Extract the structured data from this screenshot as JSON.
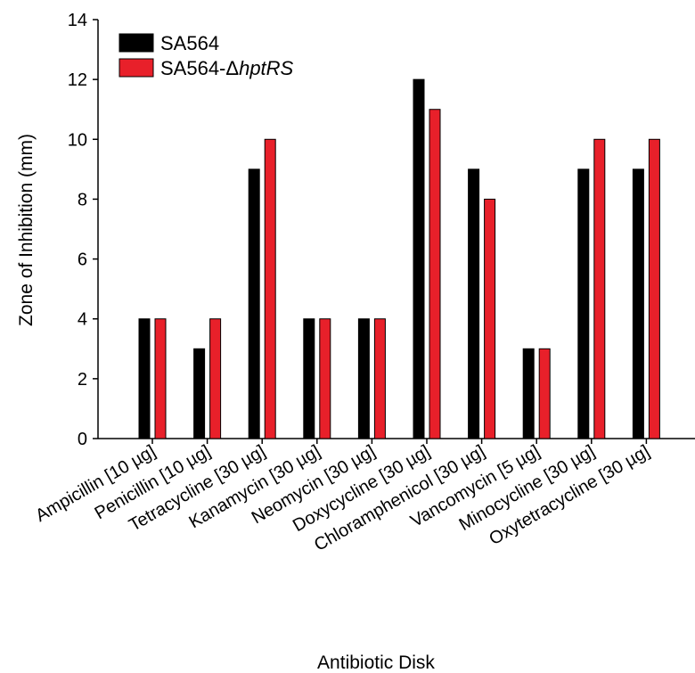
{
  "chart_data": {
    "type": "bar",
    "title": "",
    "xlabel": "Antibiotic Disk",
    "ylabel": "Zone of Inhibition (mm)",
    "ylim": [
      0,
      14
    ],
    "yticks": [
      "0",
      "2",
      "4",
      "6",
      "8",
      "10",
      "12",
      "14"
    ],
    "grid": false,
    "legend_position": "top-left",
    "categories": [
      "Ampicillin [10 µg]",
      "Penicillin [10 µg]",
      "Tetracycline [30 µg]",
      "Kanamycin [30 µg]",
      "Neomycin [30 µg]",
      "Doxycycline [30 µg]",
      "Chloramphenicol [30 µg]",
      "Vancomycin [5 µg]",
      "Minocycline [30 µg]",
      "Oxytetracycline [30 µg]"
    ],
    "series": [
      {
        "name": "SA564",
        "name_prefix": "SA564",
        "name_italic": "",
        "color": "#000000",
        "values": [
          4,
          3,
          9,
          4,
          4,
          12,
          9,
          3,
          9,
          9
        ]
      },
      {
        "name": "SA564-ΔhptRS",
        "name_prefix": "SA564-Δ",
        "name_italic": "hptRS",
        "color": "#e8202a",
        "values": [
          4,
          4,
          10,
          4,
          4,
          11,
          8,
          3,
          10,
          10
        ]
      }
    ]
  }
}
